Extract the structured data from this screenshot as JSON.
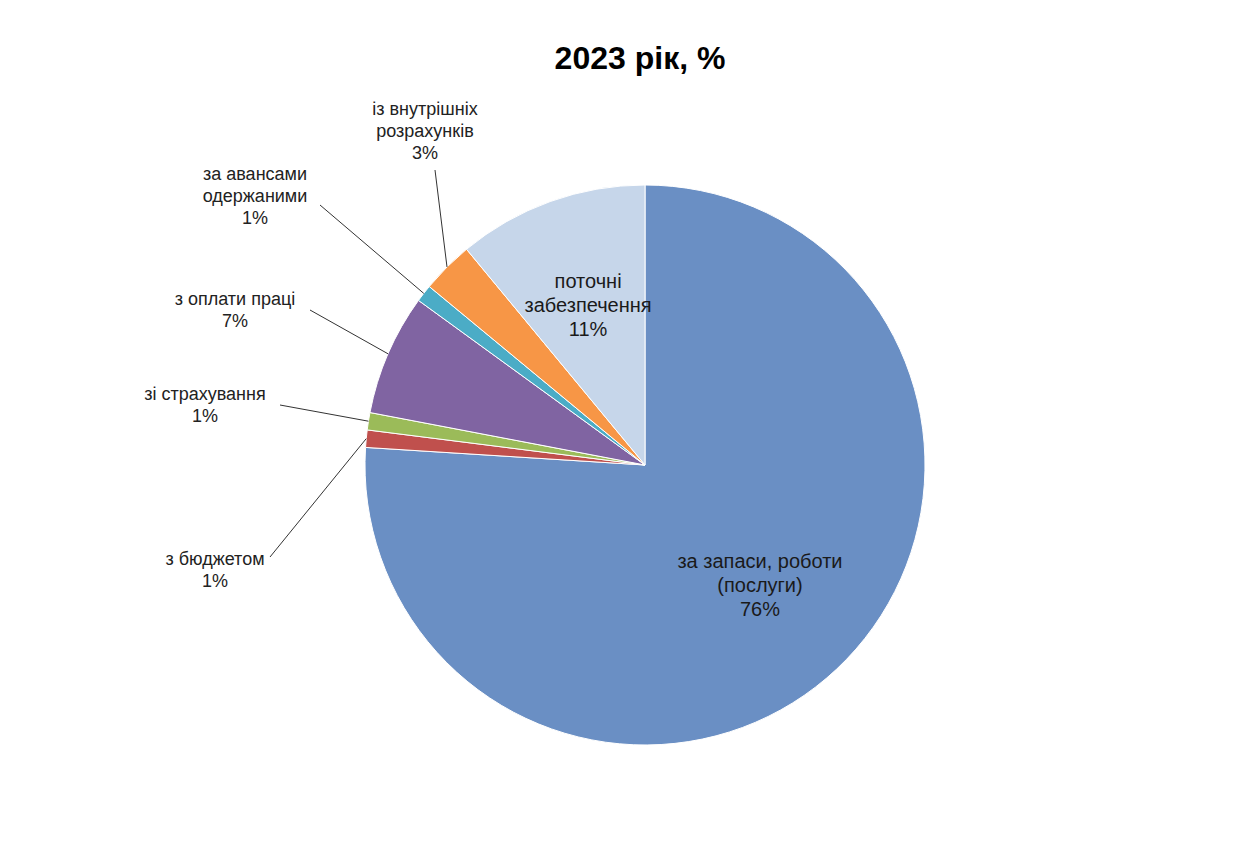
{
  "chart_data": {
    "type": "pie",
    "title": "2023 рік, %",
    "categories": [
      "за запаси, роботи (послуги)",
      "з бюджетом",
      "зі страхування",
      "з оплати праці",
      "за авансами одержаними",
      "із внутрішніх розрахунків",
      "поточні забезпечення"
    ],
    "values": [
      76,
      1,
      1,
      7,
      1,
      3,
      11
    ],
    "value_labels": [
      "76%",
      "1%",
      "1%",
      "7%",
      "1%",
      "3%",
      "11%"
    ],
    "colors": [
      "#6a8fc4",
      "#c0504d",
      "#9bbb59",
      "#8064a2",
      "#4bacc6",
      "#f79646",
      "#c6d6ea"
    ],
    "data_labels": true
  }
}
